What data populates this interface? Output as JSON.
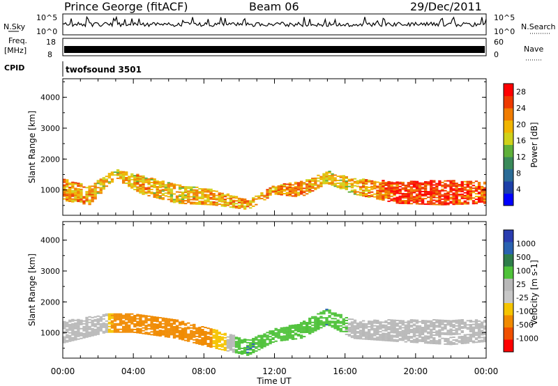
{
  "header": {
    "station": "Prince George (fitACF)",
    "beam": "Beam 06",
    "date": "29/Dec/2011"
  },
  "top_panels": {
    "nsky_label": "N.Sky",
    "nsky_ticks": [
      "10^5",
      "10^0"
    ],
    "nsearch_label": "N.Search",
    "nsearch_ticks": [
      "10^5",
      "10^0"
    ],
    "freq_label": "Freq.",
    "freq_unit": "[MHz]",
    "freq_ticks": [
      "18",
      "8"
    ],
    "nave_label": "Nave",
    "nave_ticks": [
      "60",
      "0"
    ],
    "cpid_label": "CPID",
    "cpid_value": "twofsound 3501"
  },
  "colors": {
    "power_scale": [
      "#0000ff",
      "#1c3fa8",
      "#2a6b96",
      "#3a8a5a",
      "#5fb03a",
      "#cfd11a",
      "#f0b400",
      "#f07c00",
      "#ee3a00",
      "#ff0000"
    ],
    "velocity_scale": [
      "#2a3db0",
      "#2a62b0",
      "#2e7d4a",
      "#4fc23a",
      "#b8b8b8",
      "#c7c7c7",
      "#f5c400",
      "#f08a00",
      "#f05000",
      "#ff0000"
    ]
  },
  "chart_data": [
    {
      "type": "heatmap",
      "title": "",
      "xlabel": "Time UT",
      "ylabel": "Slant Range [km]",
      "x_ticks": [
        "00:00",
        "04:00",
        "08:00",
        "12:00",
        "16:00",
        "20:00",
        "00:00"
      ],
      "y_ticks": [
        "1000",
        "2000",
        "3000",
        "4000"
      ],
      "ylim": [
        180,
        4600
      ],
      "colorbar": {
        "label": "Power [dB]",
        "ticks": [
          "4",
          "8",
          "12",
          "16",
          "20",
          "24",
          "28"
        ],
        "range": [
          0,
          30
        ]
      },
      "bands": [
        {
          "t": 0.0,
          "center": 1000,
          "halfwidth": 350,
          "value": 22
        },
        {
          "t": 1.5,
          "center": 800,
          "halfwidth": 300,
          "value": 20
        },
        {
          "t": 3.0,
          "center": 1500,
          "halfwidth": 150,
          "value": 18
        },
        {
          "t": 4.5,
          "center": 1150,
          "halfwidth": 300,
          "value": 20
        },
        {
          "t": 6.5,
          "center": 850,
          "halfwidth": 300,
          "value": 19
        },
        {
          "t": 8.5,
          "center": 750,
          "halfwidth": 250,
          "value": 20
        },
        {
          "t": 10.5,
          "center": 500,
          "halfwidth": 150,
          "value": 20
        },
        {
          "t": 12.0,
          "center": 1000,
          "halfwidth": 150,
          "value": 21
        },
        {
          "t": 13.5,
          "center": 1000,
          "halfwidth": 250,
          "value": 22
        },
        {
          "t": 15.0,
          "center": 1400,
          "halfwidth": 200,
          "value": 18
        },
        {
          "t": 16.5,
          "center": 1100,
          "halfwidth": 250,
          "value": 19
        },
        {
          "t": 19.0,
          "center": 900,
          "halfwidth": 350,
          "value": 26
        },
        {
          "t": 21.5,
          "center": 900,
          "halfwidth": 400,
          "value": 27
        },
        {
          "t": 24.0,
          "center": 900,
          "halfwidth": 350,
          "value": 24
        }
      ]
    },
    {
      "type": "heatmap",
      "title": "",
      "xlabel": "Time UT",
      "ylabel": "Slant Range [km]",
      "x_ticks": [
        "00:00",
        "04:00",
        "08:00",
        "12:00",
        "16:00",
        "20:00",
        "00:00"
      ],
      "y_ticks": [
        "1000",
        "2000",
        "3000",
        "4000"
      ],
      "ylim": [
        180,
        4600
      ],
      "colorbar": {
        "label": "Velocity [m s-1]",
        "ticks": [
          "1000",
          "500",
          "100",
          "25",
          "-25",
          "-100",
          "-500",
          "-1000"
        ]
      },
      "bands": [
        {
          "t": 0.0,
          "center": 1000,
          "halfwidth": 350,
          "value": 0
        },
        {
          "t": 2.5,
          "center": 1300,
          "halfwidth": 300,
          "value": 0
        },
        {
          "t": 4.0,
          "center": 1300,
          "halfwidth": 300,
          "value": -500
        },
        {
          "t": 6.5,
          "center": 1100,
          "halfwidth": 300,
          "value": -300
        },
        {
          "t": 8.5,
          "center": 800,
          "halfwidth": 300,
          "value": -100
        },
        {
          "t": 10.5,
          "center": 500,
          "halfwidth": 250,
          "value": 100
        },
        {
          "t": 12.0,
          "center": 900,
          "halfwidth": 200,
          "value": 80
        },
        {
          "t": 13.5,
          "center": 1050,
          "halfwidth": 250,
          "value": 60
        },
        {
          "t": 15.0,
          "center": 1500,
          "halfwidth": 250,
          "value": 100
        },
        {
          "t": 16.5,
          "center": 1100,
          "halfwidth": 300,
          "value": 0
        },
        {
          "t": 19.0,
          "center": 1050,
          "halfwidth": 350,
          "value": 0
        },
        {
          "t": 22.0,
          "center": 1000,
          "halfwidth": 400,
          "value": 0
        },
        {
          "t": 24.0,
          "center": 1050,
          "halfwidth": 350,
          "value": 0
        }
      ]
    }
  ]
}
